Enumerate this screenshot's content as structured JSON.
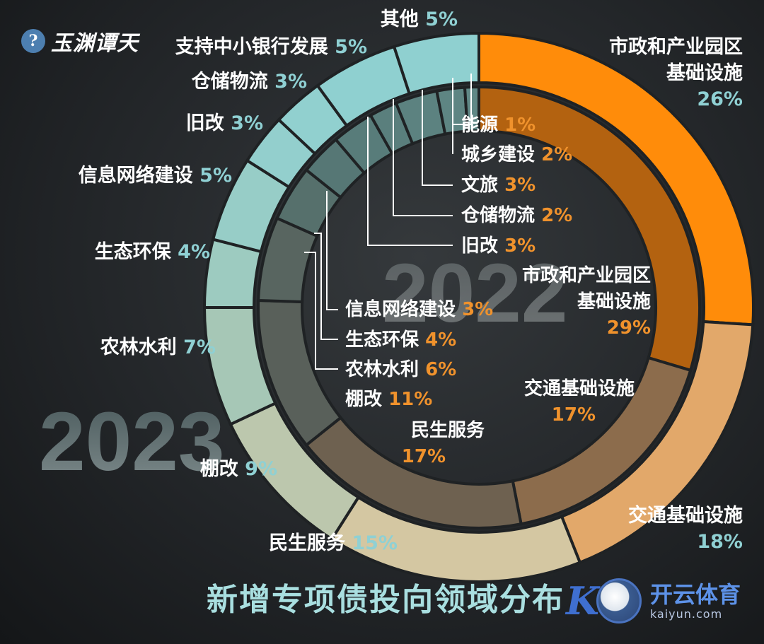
{
  "title": "新增专项债投向领域分布",
  "logo": {
    "text": "玉渊谭天"
  },
  "watermark": {
    "main": "开云体育",
    "sub": "kaiyun.com"
  },
  "chart_data": {
    "type": "pie",
    "rings": [
      {
        "year": "2023",
        "segments": [
          {
            "name": "市政和产业园区基础设施",
            "label": "市政和产业园区\n基础设施",
            "pct_text": "26%",
            "value": 26,
            "color": "#ff8c0a"
          },
          {
            "name": "交通基础设施",
            "label": "交通基础设施",
            "pct_text": "18%",
            "value": 18,
            "color": "#e2a86a"
          },
          {
            "name": "民生服务",
            "label": "民生服务",
            "pct_text": "15%",
            "value": 15,
            "color": "#d4c7a2"
          },
          {
            "name": "棚改",
            "label": "棚改",
            "pct_text": "9%",
            "value": 9,
            "color": "#bcc7ad"
          },
          {
            "name": "农林水利",
            "label": "农林水利",
            "pct_text": "7%",
            "value": 7,
            "color": "#a6c7b6"
          },
          {
            "name": "生态环保",
            "label": "生态环保",
            "pct_text": "4%",
            "value": 4,
            "color": "#9dcbc0"
          },
          {
            "name": "信息网络建设",
            "label": "信息网络建设",
            "pct_text": "5%",
            "value": 5,
            "color": "#97cdc7"
          },
          {
            "name": "旧改",
            "label": "旧改",
            "pct_text": "3%",
            "value": 3,
            "color": "#93cfcd"
          },
          {
            "name": "仓储物流",
            "label": "仓储物流",
            "pct_text": "3%",
            "value": 3,
            "color": "#91d0cf"
          },
          {
            "name": "支持中小银行发展",
            "label": "支持中小银行发展",
            "pct_text": "5%",
            "value": 5,
            "color": "#8fd0d0"
          },
          {
            "name": "其他",
            "label": "其他",
            "pct_text": "5%",
            "value": 5,
            "color": "#8fd0d0"
          }
        ]
      },
      {
        "year": "2022",
        "segments": [
          {
            "name": "市政和产业园区基础设施",
            "label": "市政和产业园区\n基础设施",
            "pct_text": "29%",
            "value": 29,
            "color": "#b36210"
          },
          {
            "name": "交通基础设施",
            "label": "交通基础设施",
            "pct_text": "17%",
            "value": 17,
            "color": "#8c6c4c"
          },
          {
            "name": "民生服务",
            "label": "民生服务",
            "pct_text": "17%",
            "value": 17,
            "color": "#6e6150"
          },
          {
            "name": "棚改",
            "label": "棚改",
            "pct_text": "11%",
            "value": 11,
            "color": "#59605a"
          },
          {
            "name": "农林水利",
            "label": "农林水利",
            "pct_text": "6%",
            "value": 6,
            "color": "#586560"
          },
          {
            "name": "生态环保",
            "label": "生态环保",
            "pct_text": "4%",
            "value": 4,
            "color": "#56706c"
          },
          {
            "name": "信息网络建设",
            "label": "信息网络建设",
            "pct_text": "3%",
            "value": 3,
            "color": "#567775"
          },
          {
            "name": "旧改",
            "label": "旧改",
            "pct_text": "3%",
            "value": 3,
            "color": "#587c7a"
          },
          {
            "name": "仓储物流",
            "label": "仓储物流",
            "pct_text": "2%",
            "value": 2,
            "color": "#5a7f7d"
          },
          {
            "name": "文旅",
            "label": "文旅",
            "pct_text": "3%",
            "value": 3,
            "color": "#5c8280"
          },
          {
            "name": "城乡建设",
            "label": "城乡建设",
            "pct_text": "2%",
            "value": 2,
            "color": "#5e8583"
          },
          {
            "name": "能源",
            "label": "能源",
            "pct_text": "1%",
            "value": 1,
            "color": "#608886"
          }
        ]
      }
    ]
  }
}
